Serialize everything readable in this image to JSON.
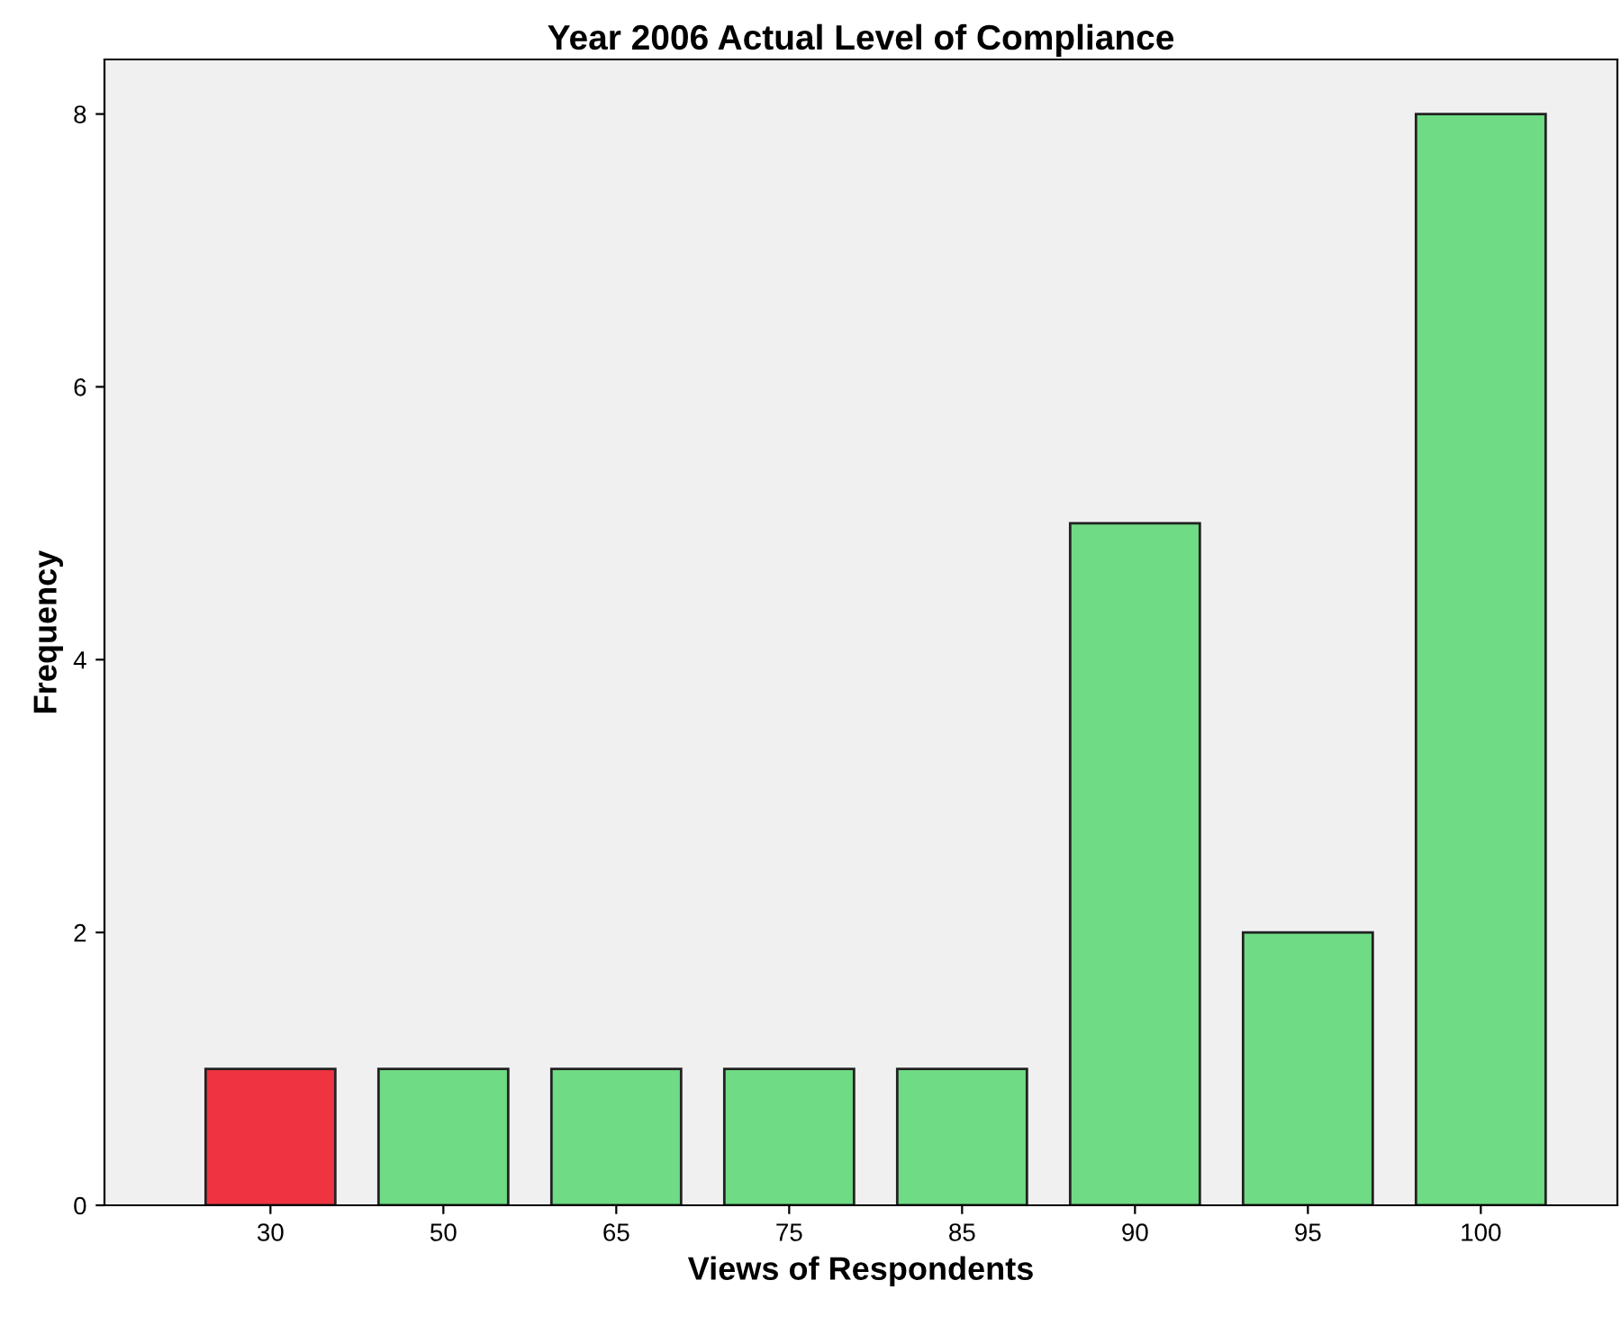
{
  "chart_data": {
    "type": "bar",
    "title": "Year 2006 Actual Level of Compliance",
    "xlabel": "Views of Respondents",
    "ylabel": "Frequency",
    "categories": [
      "30",
      "50",
      "65",
      "75",
      "85",
      "90",
      "95",
      "100"
    ],
    "values": [
      1,
      1,
      1,
      1,
      1,
      5,
      2,
      8
    ],
    "colors": [
      "#ef3340",
      "#6fdb84",
      "#6fdb84",
      "#6fdb84",
      "#6fdb84",
      "#6fdb84",
      "#6fdb84",
      "#6fdb84"
    ],
    "ylim": [
      0,
      8.4
    ],
    "yticks": [
      0,
      2,
      4,
      6,
      8
    ],
    "grid": false,
    "legend": false
  }
}
